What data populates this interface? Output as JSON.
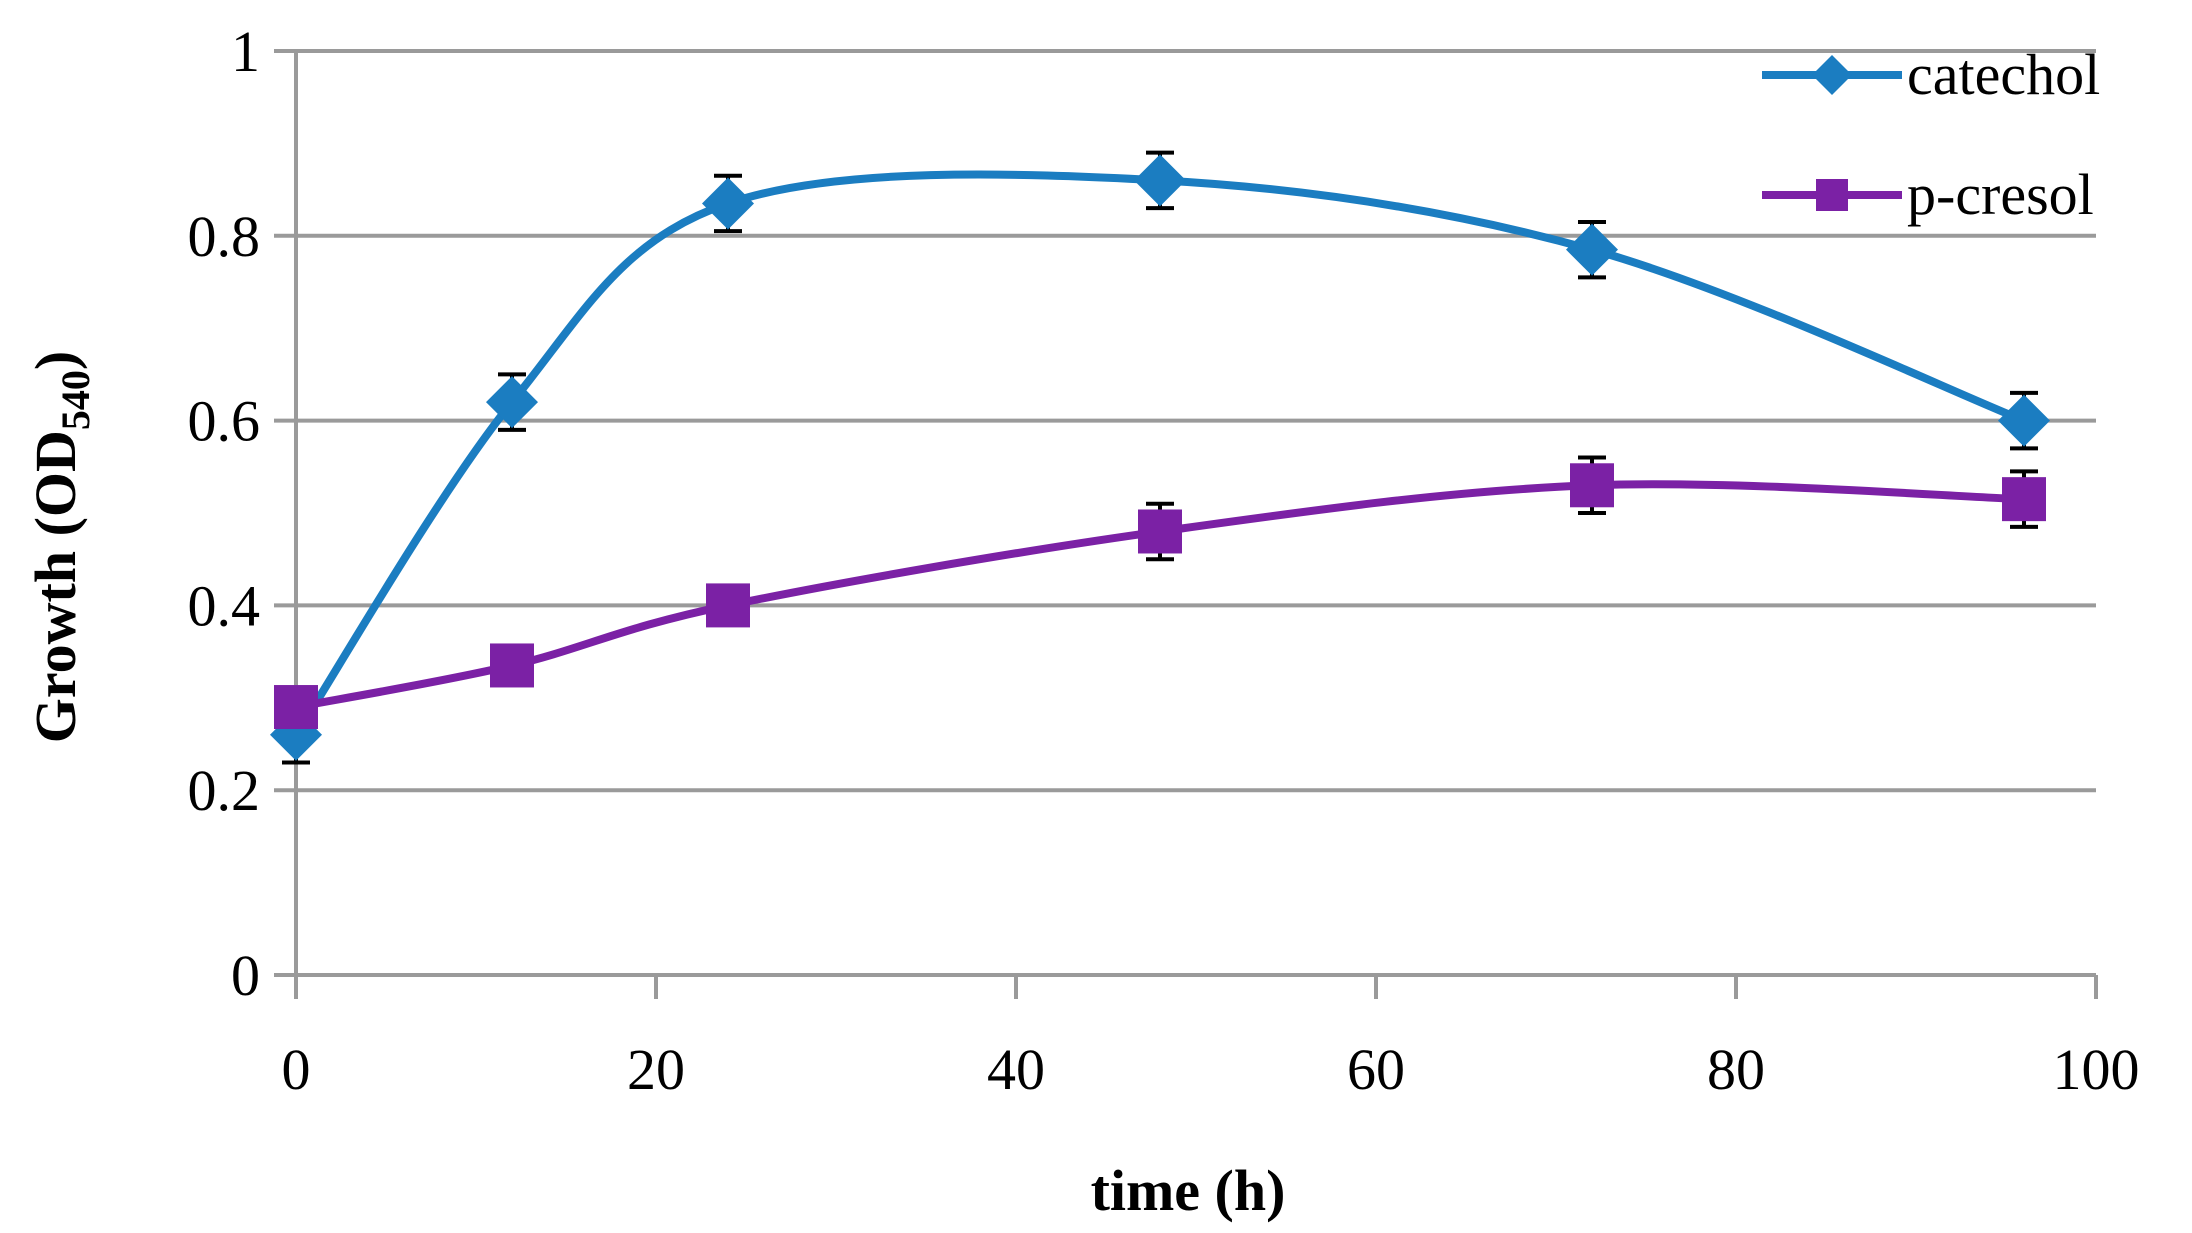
{
  "chart_data": {
    "type": "line",
    "title": "",
    "xlabel": "time (h)",
    "ylabel": {
      "main": "Growth (OD",
      "sub": "540",
      "close": ")"
    },
    "xlim": [
      0,
      100
    ],
    "ylim": [
      0,
      1
    ],
    "xticks": [
      0,
      20,
      40,
      60,
      80,
      100
    ],
    "yticks": [
      0,
      0.2,
      0.4,
      0.6,
      0.8,
      1
    ],
    "xtick_labels": [
      "0",
      "20",
      "40",
      "60",
      "80",
      "100"
    ],
    "ytick_labels": [
      "0",
      "0.2",
      "0.4",
      "0.6",
      "0.8",
      "1"
    ],
    "grid": "horizontal",
    "legend_position": "top-right",
    "series": [
      {
        "name": "catechol",
        "color": "#1B7DC1",
        "marker": "diamond",
        "smooth": true,
        "x": [
          0,
          12,
          24,
          48,
          72,
          96
        ],
        "y": [
          0.26,
          0.62,
          0.835,
          0.86,
          0.785,
          0.6
        ],
        "err": [
          0.03,
          0.03,
          0.03,
          0.03,
          0.03,
          0.03
        ]
      },
      {
        "name": "p-cresol",
        "color": "#7B21A5",
        "marker": "square",
        "smooth": true,
        "x": [
          0,
          12,
          24,
          48,
          72,
          96
        ],
        "y": [
          0.29,
          0.335,
          0.4,
          0.48,
          0.53,
          0.515
        ],
        "err": [
          0.02,
          0.02,
          0.02,
          0.03,
          0.03,
          0.03
        ]
      }
    ]
  }
}
